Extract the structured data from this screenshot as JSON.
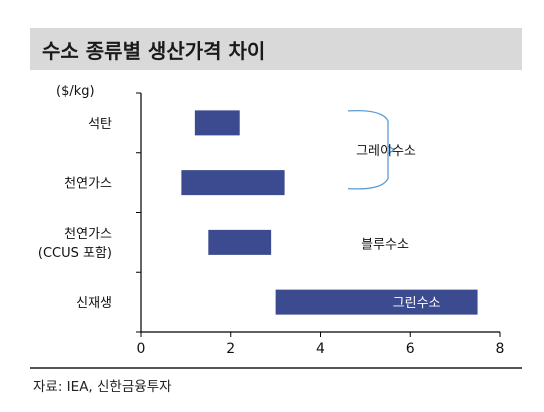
{
  "header": {
    "title": "수소 종류별 생산가격 차이"
  },
  "source": "자료: IEA, 신한금융투자",
  "chart_data": {
    "type": "bar",
    "orientation": "horizontal-range",
    "unit_label": "($/kg)",
    "categories": [
      "석탄",
      "천연가스",
      "천연가스\n(CCUS 포함)",
      "신재생"
    ],
    "ranges": [
      {
        "category": "석탄",
        "min": 1.2,
        "max": 2.2
      },
      {
        "category": "천연가스",
        "min": 0.9,
        "max": 3.2
      },
      {
        "category": "천연가스 (CCUS 포함)",
        "min": 1.5,
        "max": 2.9
      },
      {
        "category": "신재생",
        "min": 3.0,
        "max": 7.5
      }
    ],
    "xlim": [
      0,
      8
    ],
    "x_ticks": [
      0,
      2,
      4,
      6,
      8
    ],
    "bar_color": "#3c4a8f",
    "annotations": [
      {
        "text": "그레이수소",
        "group": [
          "석탄",
          "천연가스"
        ]
      },
      {
        "text": "블루수소",
        "group": [
          "천연가스 (CCUS 포함)"
        ]
      },
      {
        "text": "그린수소",
        "group": [
          "신재생"
        ],
        "inside_bar": true
      }
    ],
    "grid": false
  }
}
